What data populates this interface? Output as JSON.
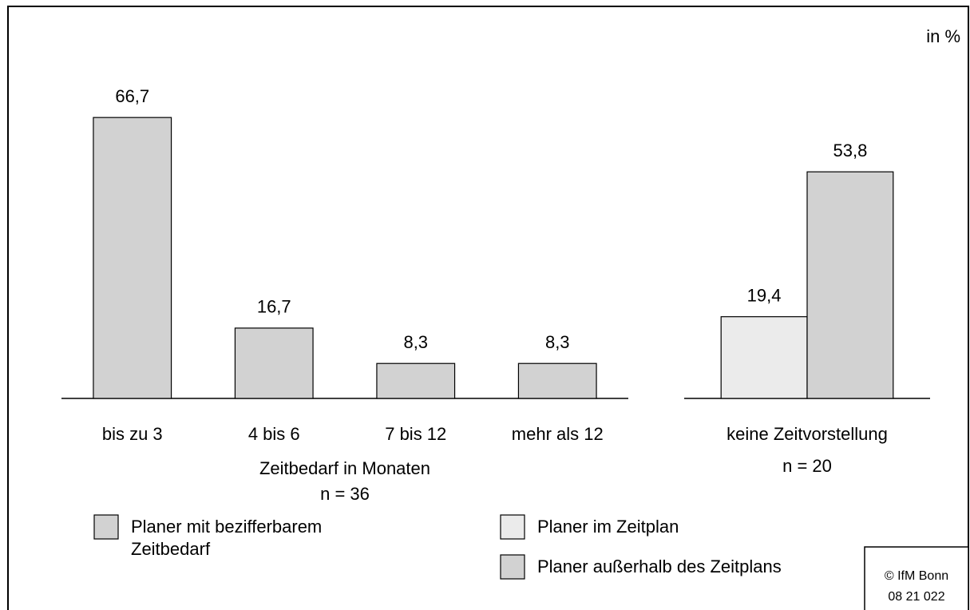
{
  "unit_label": "in %",
  "source": [
    "© IfM Bonn",
    "08 21 022"
  ],
  "chart_data": [
    {
      "type": "bar",
      "categories": [
        "bis zu 3",
        "4 bis 6",
        "7 bis 12",
        "mehr als 12"
      ],
      "series": [
        {
          "name": "Planer mit bezifferbarem Zeitbedarf",
          "color": "#d2d2d2",
          "values": [
            66.7,
            16.7,
            8.3,
            8.3
          ],
          "value_labels": [
            "66,7",
            "16,7",
            "8,3",
            "8,3"
          ]
        }
      ],
      "x_label": "Zeitbedarf in Monaten",
      "note": "n = 36",
      "ylim": [
        0,
        80
      ]
    },
    {
      "type": "bar",
      "categories": [
        "keine Zeitvorstellung"
      ],
      "series": [
        {
          "name": "Planer im Zeitplan",
          "color": "#ebebeb",
          "values": [
            19.4
          ],
          "value_labels": [
            "19,4"
          ]
        },
        {
          "name": "Planer außerhalb des Zeitplans",
          "color": "#d2d2d2",
          "values": [
            53.8
          ],
          "value_labels": [
            "53,8"
          ]
        }
      ],
      "note": "n = 20",
      "ylim": [
        0,
        80
      ]
    }
  ]
}
